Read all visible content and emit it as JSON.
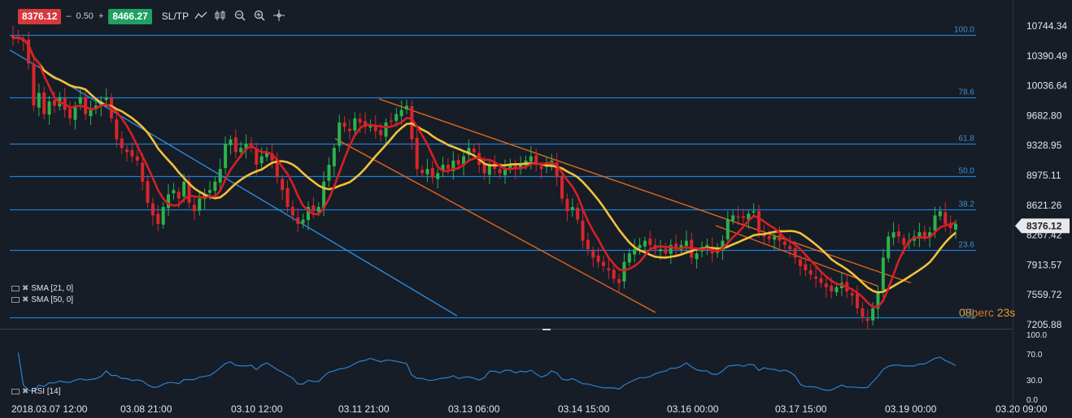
{
  "toolbar": {
    "bid": "8376.12",
    "spread_sign": "–",
    "spread": "0.50",
    "ask_sign": "+",
    "ask": "8466.27",
    "sltp": "SL/TP",
    "icons": [
      "line-tool-icon",
      "candle-tool-icon",
      "zoom-out-icon",
      "zoom-in-icon",
      "crosshair-icon"
    ]
  },
  "indicators": [
    {
      "label": "SMA [21, 0]",
      "color": "#d61f26"
    },
    {
      "label": "SMA [50, 0]",
      "color": "#f3c13a"
    }
  ],
  "rsi_label": "RSI [14]",
  "timer": {
    "part1": "08",
    "part2": "perc",
    "part3": "23s"
  },
  "colors": {
    "sma21": "#d61f26",
    "sma50": "#f3c13a",
    "fib": "#1f7ed6",
    "channel": "#e0661b",
    "trendline": "#2b8be0",
    "up": "#2db24b",
    "down": "#d8262b",
    "rsi": "#2e7fd0",
    "last_price_bg": "#e6e8eb"
  },
  "chart_data": {
    "type": "candlestick",
    "y_ticks": [
      "10744.34",
      "10390.49",
      "10036.64",
      "9682.80",
      "9328.95",
      "8975.11",
      "8621.26",
      "8267.42",
      "7913.57",
      "7559.72",
      "7205.88"
    ],
    "x_ticks": [
      "2018.03.07 12:00",
      "03.08 21:00",
      "03.10 12:00",
      "03.11 21:00",
      "03.13 06:00",
      "03.14 15:00",
      "03.16 00:00",
      "03.17 15:00",
      "03.19 00:00",
      "03.20 09:00"
    ],
    "ylim": [
      7205.88,
      10744.34
    ],
    "last_price": "8376.12",
    "fibonacci": [
      {
        "level": "100.0",
        "price": 10640
      },
      {
        "level": "78.6",
        "price": 9895
      },
      {
        "level": "61.8",
        "price": 9350
      },
      {
        "level": "50.0",
        "price": 8962
      },
      {
        "level": "38.2",
        "price": 8575
      },
      {
        "level": "23.6",
        "price": 8090
      },
      {
        "level": "0.0",
        "price": 7290
      }
    ],
    "trend_lines": [
      {
        "kind": "blue-trend",
        "points": [
          [
            "03.07",
            10460
          ],
          [
            "03.12 08:00",
            7310
          ]
        ]
      },
      {
        "kind": "channel-upper",
        "points": [
          [
            "03.11 20:00",
            9880
          ],
          [
            "03.18 20:00",
            7700
          ]
        ]
      },
      {
        "kind": "channel-lower",
        "points": [
          [
            "03.11 15:00",
            9410
          ],
          [
            "03.14 16:00",
            7350
          ]
        ]
      }
    ],
    "closes": [
      10600,
      10610,
      10560,
      10300,
      9800,
      9950,
      9700,
      9850,
      9800,
      9900,
      9750,
      9650,
      9800,
      9900,
      9700,
      9750,
      9800,
      9850,
      9900,
      9650,
      9400,
      9300,
      9250,
      9200,
      9150,
      8900,
      8650,
      8500,
      8400,
      8600,
      8750,
      8800,
      8700,
      8900,
      8650,
      8550,
      8700,
      8750,
      8800,
      8900,
      9050,
      9350,
      9400,
      9250,
      9300,
      9350,
      9300,
      9100,
      9200,
      9250,
      9150,
      8950,
      8800,
      8600,
      8500,
      8400,
      8450,
      8600,
      8550,
      8600,
      8900,
      9100,
      9300,
      9600,
      9550,
      9500,
      9650,
      9600,
      9550,
      9580,
      9500,
      9450,
      9600,
      9620,
      9700,
      9750,
      9800,
      9400,
      9050,
      9000,
      9050,
      8950,
      9000,
      9100,
      9050,
      9150,
      9100,
      9200,
      9300,
      9250,
      9100,
      9000,
      9100,
      9050,
      9000,
      9050,
      9100,
      9050,
      9100,
      9150,
      9200,
      9100,
      9050,
      9100,
      9150,
      8950,
      8700,
      8550,
      8600,
      8450,
      8200,
      8100,
      8000,
      7950,
      7900,
      7850,
      7750,
      7700,
      7950,
      8050,
      8100,
      8150,
      8200,
      8150,
      8100,
      8100,
      8050,
      8150,
      8100,
      8150,
      8200,
      8000,
      8050,
      8100,
      8150,
      8050,
      8100,
      8200,
      8450,
      8500,
      8480,
      8470,
      8520,
      8550,
      8300,
      8250,
      8220,
      8250,
      8200,
      8150,
      8100,
      8000,
      7900,
      7850,
      7800,
      7750,
      7700,
      7650,
      7600,
      7650,
      7700,
      7600,
      7550,
      7400,
      7300,
      7250,
      7400,
      7600,
      8000,
      8250,
      8300,
      8250,
      8150,
      8200,
      8250,
      8300,
      8250,
      8300,
      8500,
      8550,
      8400,
      8350,
      8400
    ]
  }
}
